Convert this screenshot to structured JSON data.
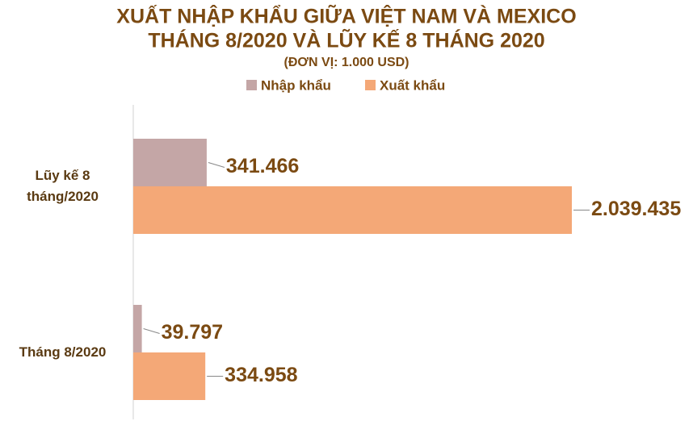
{
  "chart_data": {
    "type": "hbar",
    "title": [
      "XUẤT NHẬP KHẨU GIỮA VIỆT NAM VÀ MEXICO",
      "THÁNG 8/2020 VÀ LŨY KẾ 8 THÁNG 2020"
    ],
    "subtitle": "(ĐƠN VỊ: 1.000 USD)",
    "categories": [
      "Lũy kế 8 tháng/2020",
      "Tháng 8/2020"
    ],
    "series": [
      {
        "name": "Nhập khẩu",
        "color": "#c4a6a6",
        "values": [
          341466,
          39797
        ],
        "value_labels": [
          "341.466",
          "39.797"
        ]
      },
      {
        "name": "Xuất khẩu",
        "color": "#f4a877",
        "values": [
          2039435,
          334958
        ],
        "value_labels": [
          "2.039.435",
          "334.958"
        ]
      }
    ]
  }
}
